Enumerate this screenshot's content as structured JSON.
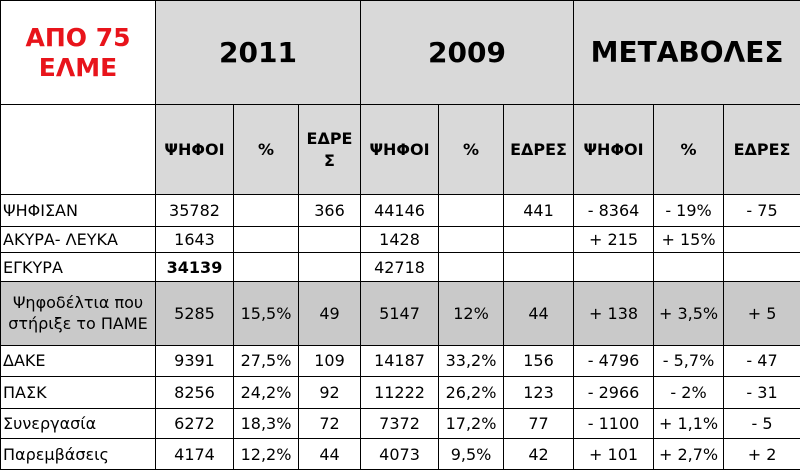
{
  "corner_label": "ΑΠΟ 75\nΕΛΜΕ",
  "years": [
    "2011",
    "2009",
    "ΜΕΤΑΒΟΛΕΣ"
  ],
  "subheaders": [
    "ΨΗΦΟΙ",
    "%",
    "ΕΔΡΕ\nΣ",
    "ΨΗΦΟΙ",
    "%",
    "ΕΔΡΕΣ",
    "ΨΗΦΟΙ",
    "%",
    "ΕΔΡΕΣ"
  ],
  "rows": [
    {
      "label": "ΨΗΦΙΣΑΝ",
      "cells": [
        "35782",
        "",
        "366",
        "44146",
        "",
        "441",
        "- 8364",
        "- 19%",
        "- 75"
      ],
      "gray": false
    },
    {
      "label": "ΑΚΥΡΑ- ΛΕΥΚΑ",
      "cells": [
        "1643",
        "",
        "",
        "1428",
        "",
        "",
        "+ 215",
        "+ 15%",
        ""
      ],
      "gray": false
    },
    {
      "label": "ΕΓΚΥΡΑ",
      "cells": [
        "34139",
        "",
        "",
        "42718",
        "",
        "",
        "",
        "",
        ""
      ],
      "gray": false,
      "bold_first": true
    },
    {
      "label": "Ψηφοδέλτια που στήριξε το ΠΑΜΕ",
      "cells": [
        "5285",
        "15,5%",
        "49",
        "5147",
        "12%",
        "44",
        "+ 138",
        "+ 3,5%",
        "+ 5"
      ],
      "gray": true
    },
    {
      "label": "ΔΑΚΕ",
      "cells": [
        "9391",
        "27,5%",
        "109",
        "14187",
        "33,2%",
        "156",
        "- 4796",
        "- 5,7%",
        "- 47"
      ],
      "gray": false
    },
    {
      "label": "ΠΑΣΚ",
      "cells": [
        "8256",
        "24,2%",
        "92",
        "11222",
        "26,2%",
        "123",
        "- 2966",
        "- 2%",
        "- 31"
      ],
      "gray": false
    },
    {
      "label": "Συνεργασία",
      "cells": [
        "6272",
        "18,3%",
        "72",
        "7372",
        "17,2%",
        "77",
        "- 1100",
        "+ 1,1%",
        "- 5"
      ],
      "gray": false
    },
    {
      "label": "Παρεμβάσεις",
      "cells": [
        "4174",
        "12,2%",
        "44",
        "4073",
        "9,5%",
        "42",
        "+ 101",
        "+ 2,7%",
        "+ 2"
      ],
      "gray": false
    }
  ]
}
